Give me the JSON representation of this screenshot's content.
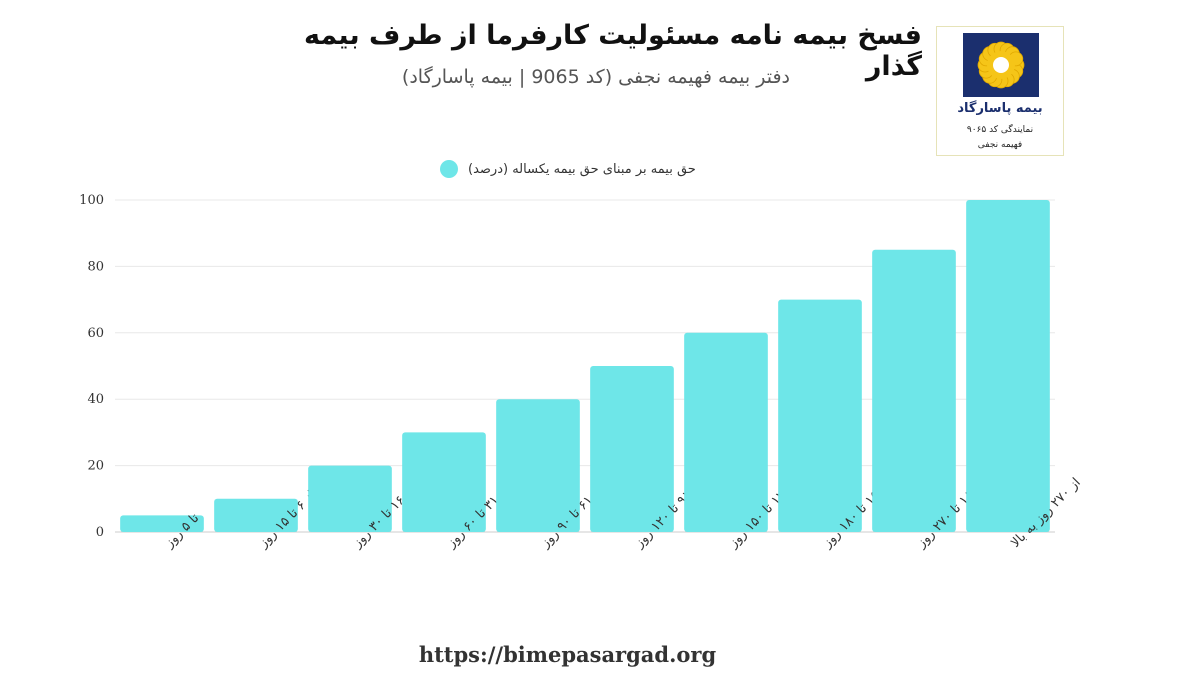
{
  "header": {
    "title": "فسخ بیمه نامه مسئولیت کارفرما از طرف بیمه گذار",
    "subtitle": "دفتر بیمه فهیمه نجفی (کد 9065 | بیمه پاسارگاد)"
  },
  "logo": {
    "name": "بیمه پاسارگاد",
    "line1": "نمایندگی کد ۹۰۶۵",
    "line2": "فهیمه نجفی",
    "navy_color": "#1b2f6e",
    "sun_color": "#f5c518"
  },
  "footer": {
    "url": "https://bimepasargad.org"
  },
  "chart_data": {
    "type": "bar",
    "title": "",
    "xlabel": "",
    "ylabel": "",
    "categories": [
      "تا ۵ روز",
      "از ۶ تا ۱۵ روز",
      "از ۱۶ تا ۳۰ روز",
      "از ۳۱ تا ۶۰ روز",
      "از ۶۱ تا ۹۰ روز",
      "از ۹۱ تا ۱۲۰ روز",
      "از ۱۲۱ تا ۱۵۰ روز",
      "از ۱۵۱ تا ۱۸۰ روز",
      "از ۱۸۱ تا ۲۷۰ روز",
      "از ۲۷۰ روز به بالا"
    ],
    "series": [
      {
        "name": "حق بیمه بر مبنای حق بیمه یکساله (درصد)",
        "values": [
          5,
          10,
          20,
          30,
          40,
          50,
          60,
          70,
          85,
          100
        ]
      }
    ],
    "ylim": [
      0,
      100
    ],
    "yticks": [
      0,
      20,
      40,
      60,
      80,
      100
    ],
    "grid": true,
    "legend_position": "top",
    "bar_color": "#6ee6e8"
  }
}
